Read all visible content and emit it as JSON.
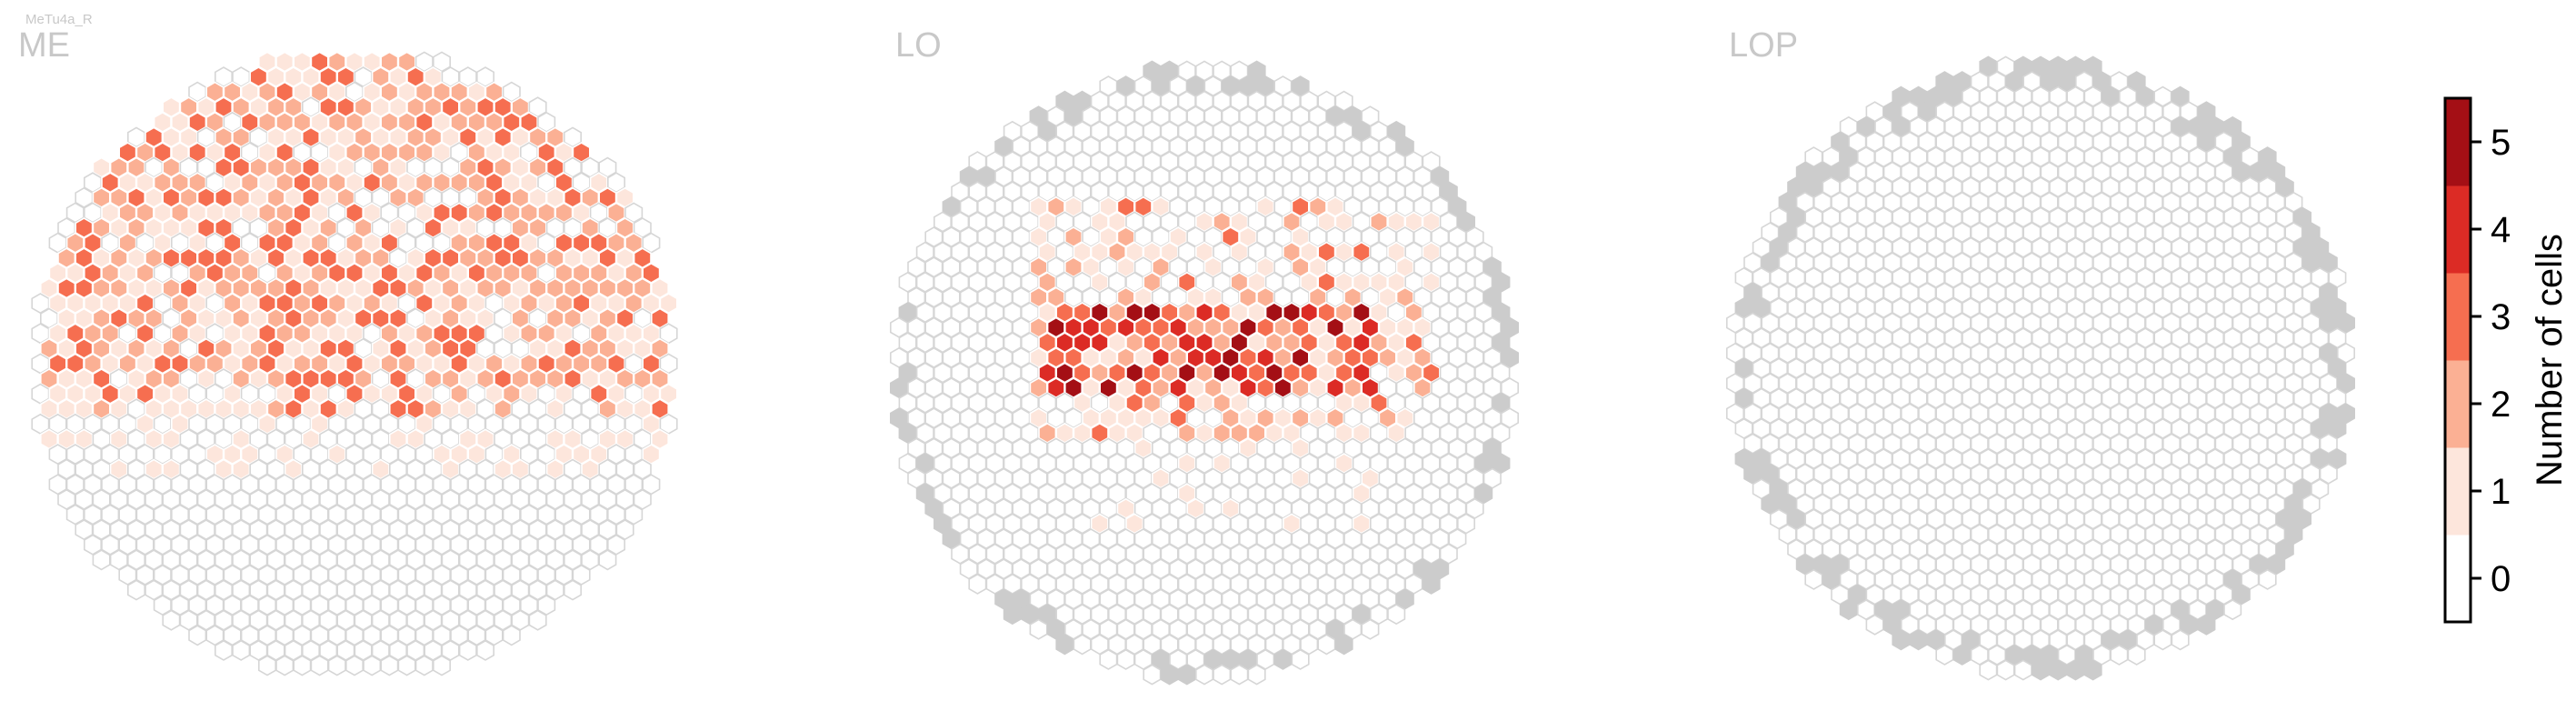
{
  "figure": {
    "cell_type_label": "MeTu4a_R"
  },
  "chart_data": {
    "type": "heatmap",
    "layout": "hexagonal eye map",
    "panels": [
      {
        "title": "ME",
        "key": "me"
      },
      {
        "title": "LO",
        "key": "lo"
      },
      {
        "title": "LOP",
        "key": "lop"
      }
    ],
    "colorbar": {
      "label": "Number of cells",
      "ticks": [
        "0",
        "1",
        "2",
        "3",
        "4",
        "5"
      ],
      "range": [
        0,
        5
      ],
      "colors": [
        "#ffffff",
        "#fde6dc",
        "#fbb094",
        "#f66e50",
        "#dc2b25",
        "#a40f15"
      ]
    },
    "cell_colors": {
      "empty": "#ffffff",
      "empty_stroke": "#d6d6d6",
      "outside": "#cccccc"
    }
  }
}
